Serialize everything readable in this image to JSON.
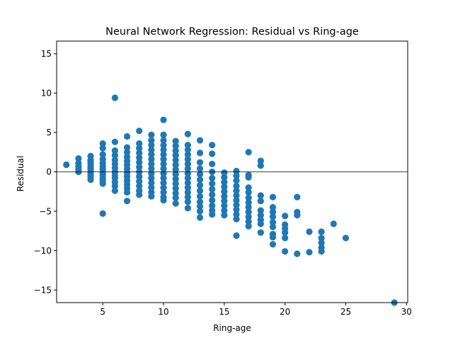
{
  "chart_data": {
    "type": "scatter",
    "title": "Neural Network Regression: Residual vs Ring-age",
    "xlabel": "Ring-age",
    "ylabel": "Residual",
    "xlim": [
      1.2,
      30.1
    ],
    "ylim": [
      -16.6,
      16.6
    ],
    "xticks": [
      5,
      10,
      15,
      20,
      25,
      30
    ],
    "yticks": [
      -15,
      -10,
      -5,
      0,
      5,
      10,
      15
    ],
    "reference_line_y": 0,
    "grid": false,
    "series": [
      {
        "color": "#1f77b4",
        "points": [
          [
            2,
            0.9
          ],
          [
            3,
            1.7
          ],
          [
            3,
            1.1
          ],
          [
            3,
            0.7
          ],
          [
            3,
            0.3
          ],
          [
            3,
            0.0
          ],
          [
            4,
            2.0
          ],
          [
            4,
            1.5
          ],
          [
            4,
            1.2
          ],
          [
            4,
            0.9
          ],
          [
            4,
            0.6
          ],
          [
            4,
            0.3
          ],
          [
            4,
            0.0
          ],
          [
            4,
            -0.3
          ],
          [
            4,
            -0.6
          ],
          [
            4,
            -1.0
          ],
          [
            5,
            3.6
          ],
          [
            5,
            3.0
          ],
          [
            5,
            2.2
          ],
          [
            5,
            1.6
          ],
          [
            5,
            1.1
          ],
          [
            5,
            0.7
          ],
          [
            5,
            0.3
          ],
          [
            5,
            -0.1
          ],
          [
            5,
            -0.4
          ],
          [
            5,
            -0.8
          ],
          [
            5,
            -1.1
          ],
          [
            5,
            -1.5
          ],
          [
            5,
            -5.3
          ],
          [
            6,
            9.4
          ],
          [
            6,
            3.8
          ],
          [
            6,
            2.7
          ],
          [
            6,
            2.1
          ],
          [
            6,
            1.5
          ],
          [
            6,
            1.0
          ],
          [
            6,
            0.5
          ],
          [
            6,
            0.0
          ],
          [
            6,
            -0.4
          ],
          [
            6,
            -0.8
          ],
          [
            6,
            -1.3
          ],
          [
            6,
            -1.8
          ],
          [
            6,
            -2.4
          ],
          [
            7,
            4.5
          ],
          [
            7,
            3.1
          ],
          [
            7,
            2.5
          ],
          [
            7,
            1.9
          ],
          [
            7,
            1.4
          ],
          [
            7,
            0.9
          ],
          [
            7,
            0.4
          ],
          [
            7,
            -0.1
          ],
          [
            7,
            -0.6
          ],
          [
            7,
            -1.1
          ],
          [
            7,
            -1.6
          ],
          [
            7,
            -2.1
          ],
          [
            7,
            -2.6
          ],
          [
            7,
            -3.7
          ],
          [
            8,
            5.2
          ],
          [
            8,
            3.6
          ],
          [
            8,
            3.0
          ],
          [
            8,
            2.4
          ],
          [
            8,
            1.8
          ],
          [
            8,
            1.2
          ],
          [
            8,
            0.6
          ],
          [
            8,
            0.0
          ],
          [
            8,
            -0.6
          ],
          [
            8,
            -1.2
          ],
          [
            8,
            -1.8
          ],
          [
            8,
            -2.4
          ],
          [
            8,
            -2.9
          ],
          [
            9,
            4.7
          ],
          [
            9,
            4.0
          ],
          [
            9,
            3.4
          ],
          [
            9,
            2.8
          ],
          [
            9,
            2.2
          ],
          [
            9,
            1.6
          ],
          [
            9,
            1.0
          ],
          [
            9,
            0.4
          ],
          [
            9,
            -0.2
          ],
          [
            9,
            -0.8
          ],
          [
            9,
            -1.4
          ],
          [
            9,
            -2.0
          ],
          [
            9,
            -2.6
          ],
          [
            9,
            -3.1
          ],
          [
            10,
            6.6
          ],
          [
            10,
            4.7
          ],
          [
            10,
            4.0
          ],
          [
            10,
            3.4
          ],
          [
            10,
            2.8
          ],
          [
            10,
            2.2
          ],
          [
            10,
            1.6
          ],
          [
            10,
            1.0
          ],
          [
            10,
            0.4
          ],
          [
            10,
            -0.2
          ],
          [
            10,
            -0.8
          ],
          [
            10,
            -1.4
          ],
          [
            10,
            -2.0
          ],
          [
            10,
            -2.6
          ],
          [
            10,
            -3.2
          ],
          [
            10,
            -3.6
          ],
          [
            11,
            3.9
          ],
          [
            11,
            3.3
          ],
          [
            11,
            2.7
          ],
          [
            11,
            2.1
          ],
          [
            11,
            1.5
          ],
          [
            11,
            0.9
          ],
          [
            11,
            0.3
          ],
          [
            11,
            -0.3
          ],
          [
            11,
            -0.9
          ],
          [
            11,
            -1.5
          ],
          [
            11,
            -2.1
          ],
          [
            11,
            -2.7
          ],
          [
            11,
            -3.3
          ],
          [
            11,
            -4.0
          ],
          [
            12,
            4.8
          ],
          [
            12,
            3.4
          ],
          [
            12,
            2.8
          ],
          [
            12,
            2.2
          ],
          [
            12,
            1.6
          ],
          [
            12,
            1.0
          ],
          [
            12,
            0.4
          ],
          [
            12,
            -0.2
          ],
          [
            12,
            -0.8
          ],
          [
            12,
            -1.4
          ],
          [
            12,
            -2.0
          ],
          [
            12,
            -2.6
          ],
          [
            12,
            -3.2
          ],
          [
            12,
            -3.8
          ],
          [
            12,
            -4.6
          ],
          [
            13,
            4.0
          ],
          [
            13,
            2.4
          ],
          [
            13,
            1.2
          ],
          [
            13,
            0.4
          ],
          [
            13,
            -0.3
          ],
          [
            13,
            -1.0
          ],
          [
            13,
            -1.7
          ],
          [
            13,
            -2.4
          ],
          [
            13,
            -3.1
          ],
          [
            13,
            -3.8
          ],
          [
            13,
            -4.4
          ],
          [
            13,
            -5.0
          ],
          [
            13,
            -5.8
          ],
          [
            14,
            3.4
          ],
          [
            14,
            2.3
          ],
          [
            14,
            1.0
          ],
          [
            14,
            0.0
          ],
          [
            14,
            -0.8
          ],
          [
            14,
            -1.5
          ],
          [
            14,
            -2.2
          ],
          [
            14,
            -2.9
          ],
          [
            14,
            -3.6
          ],
          [
            14,
            -4.3
          ],
          [
            14,
            -4.9
          ],
          [
            14,
            -5.4
          ],
          [
            15,
            -0.1
          ],
          [
            15,
            -0.7
          ],
          [
            15,
            -1.3
          ],
          [
            15,
            -1.9
          ],
          [
            15,
            -2.5
          ],
          [
            15,
            -3.1
          ],
          [
            15,
            -3.7
          ],
          [
            15,
            -4.3
          ],
          [
            15,
            -4.9
          ],
          [
            15,
            -5.5
          ],
          [
            16,
            0.1
          ],
          [
            16,
            -0.5
          ],
          [
            16,
            -1.1
          ],
          [
            16,
            -1.8
          ],
          [
            16,
            -2.4
          ],
          [
            16,
            -3.0
          ],
          [
            16,
            -3.6
          ],
          [
            16,
            -4.2
          ],
          [
            16,
            -4.8
          ],
          [
            16,
            -5.4
          ],
          [
            16,
            -6.0
          ],
          [
            16,
            -8.1
          ],
          [
            17,
            2.5
          ],
          [
            17,
            -0.4
          ],
          [
            17,
            -0.7
          ],
          [
            17,
            -2.0
          ],
          [
            17,
            -2.6
          ],
          [
            17,
            -3.3
          ],
          [
            17,
            -3.9
          ],
          [
            17,
            -4.5
          ],
          [
            17,
            -5.1
          ],
          [
            17,
            -5.7
          ],
          [
            17,
            -6.3
          ],
          [
            17,
            -6.9
          ],
          [
            18,
            1.4
          ],
          [
            18,
            0.8
          ],
          [
            18,
            -3.0
          ],
          [
            18,
            -3.7
          ],
          [
            18,
            -4.9
          ],
          [
            18,
            -5.5
          ],
          [
            18,
            -6.1
          ],
          [
            18,
            -6.6
          ],
          [
            18,
            -7.7
          ],
          [
            19,
            -3.2
          ],
          [
            19,
            -4.5
          ],
          [
            19,
            -5.1
          ],
          [
            19,
            -5.7
          ],
          [
            19,
            -6.4
          ],
          [
            19,
            -7.0
          ],
          [
            19,
            -7.9
          ],
          [
            19,
            -8.3
          ],
          [
            19,
            -9.2
          ],
          [
            20,
            -5.6
          ],
          [
            20,
            -6.7
          ],
          [
            20,
            -7.2
          ],
          [
            20,
            -7.7
          ],
          [
            20,
            -8.4
          ],
          [
            20,
            -10.1
          ],
          [
            21,
            -3.2
          ],
          [
            21,
            -5.1
          ],
          [
            21,
            -5.5
          ],
          [
            21,
            -10.4
          ],
          [
            22,
            -7.6
          ],
          [
            22,
            -10.2
          ],
          [
            23,
            -7.6
          ],
          [
            23,
            -8.4
          ],
          [
            23,
            -9.0
          ],
          [
            23,
            -9.6
          ],
          [
            23,
            -10.1
          ],
          [
            24,
            -6.6
          ],
          [
            25,
            -8.4
          ],
          [
            29,
            -16.6
          ]
        ]
      }
    ]
  }
}
